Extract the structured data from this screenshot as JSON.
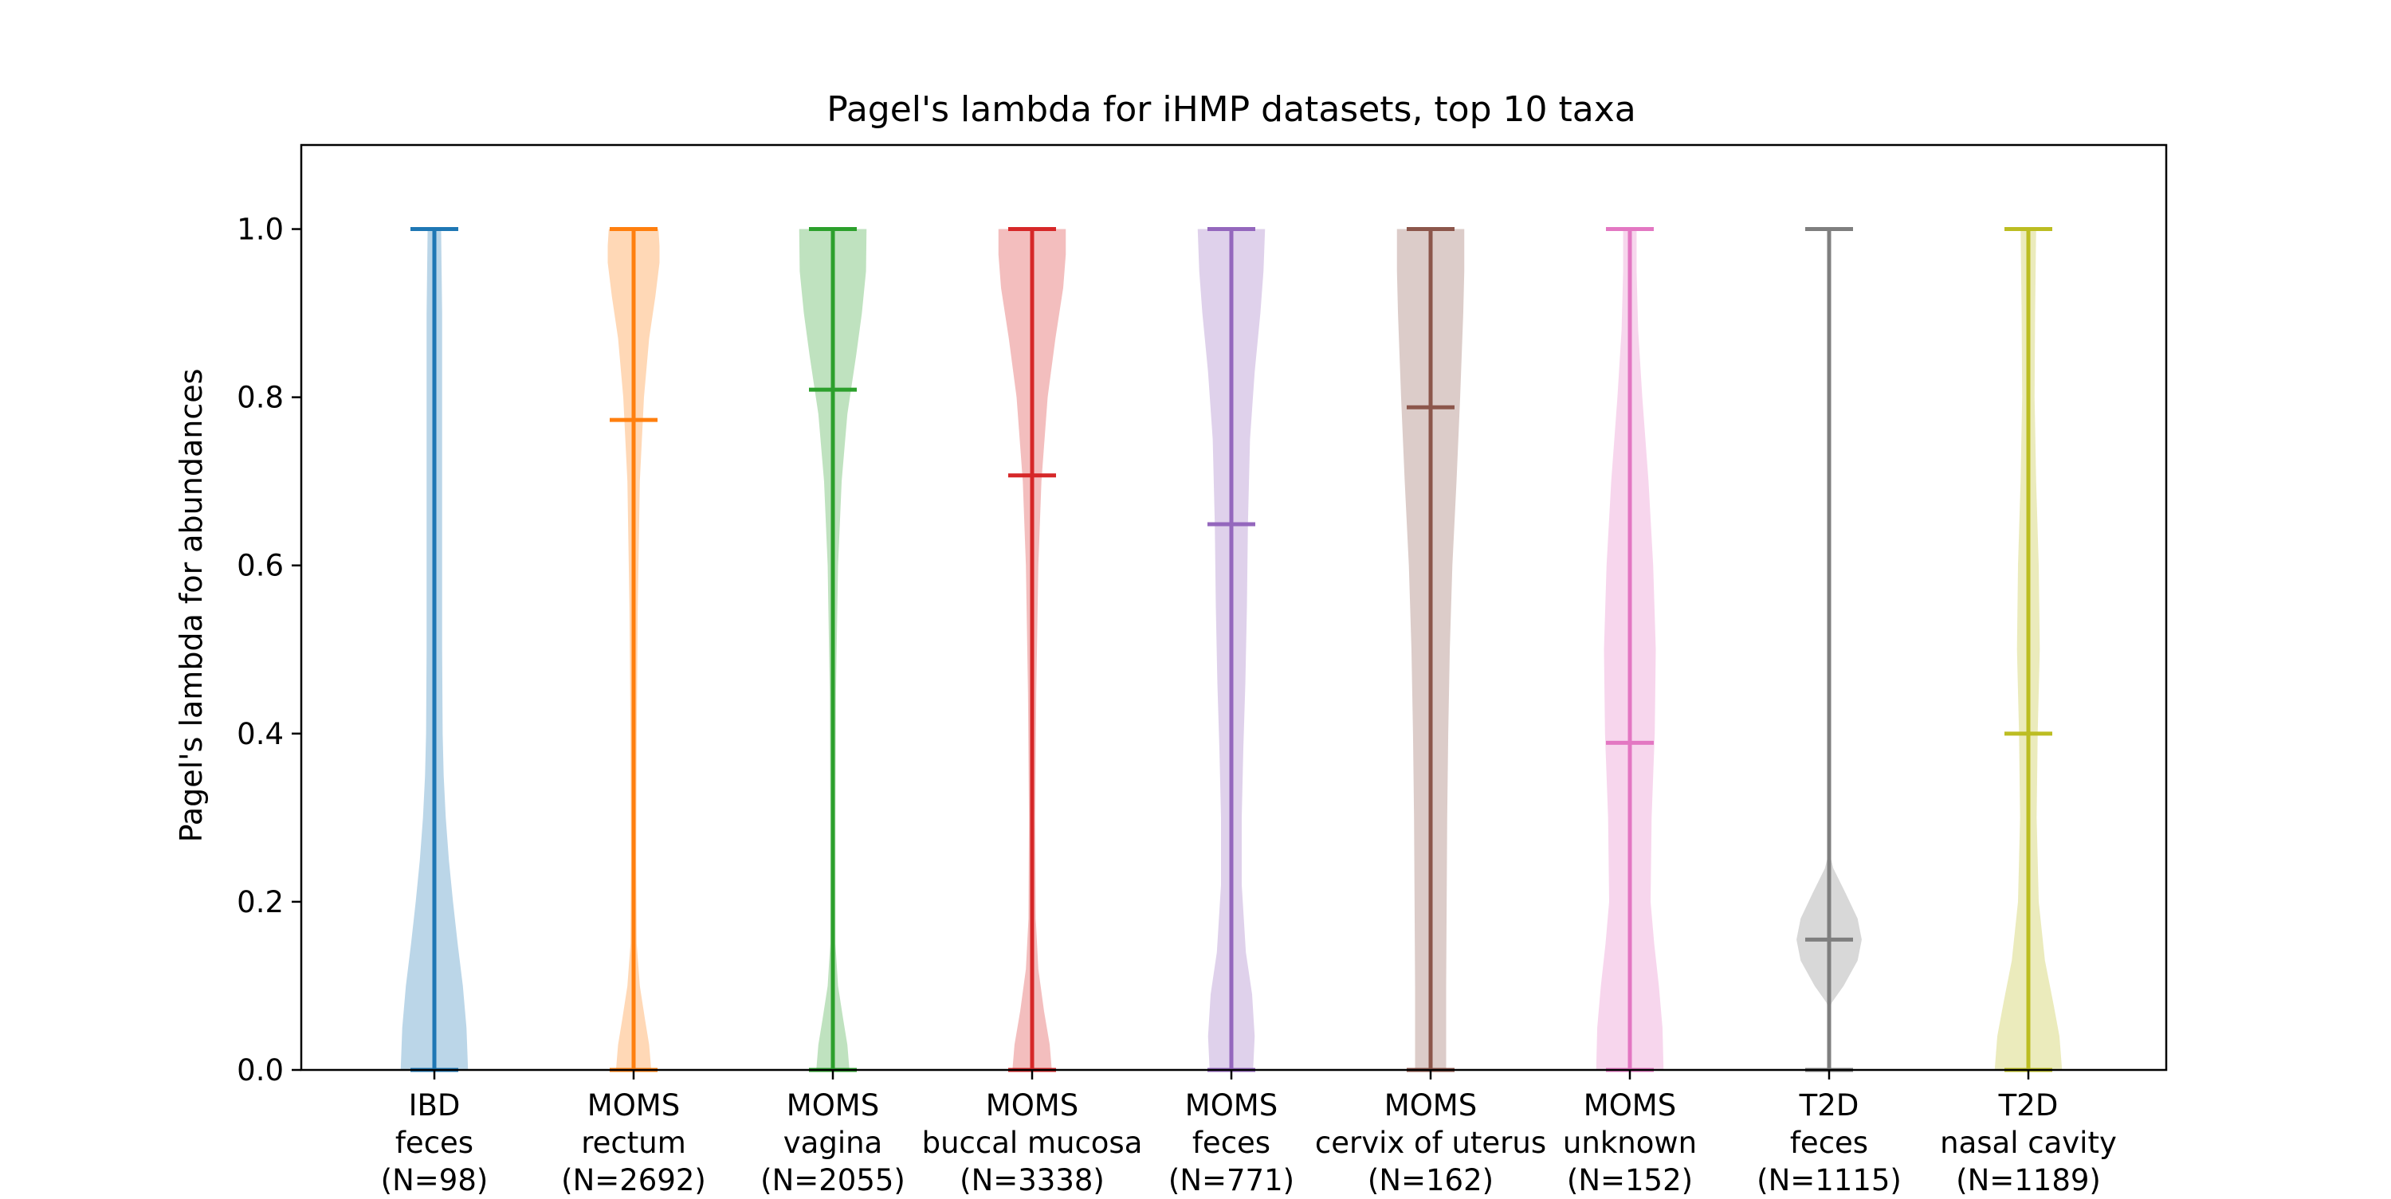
{
  "chart_data": {
    "type": "violin",
    "title": "Pagel's lambda for iHMP datasets, top 10 taxa",
    "xlabel": "",
    "ylabel": "Pagel's lambda for abundances",
    "ylim": [
      0,
      1.1
    ],
    "yticks": [
      "0.0",
      "0.2",
      "0.4",
      "0.6",
      "0.8",
      "1.0"
    ],
    "grid": false,
    "categories": [
      {
        "lines": [
          "IBD",
          "feces",
          "(N=98)"
        ],
        "color": "#1f77b4",
        "min": 0,
        "max": 1.0,
        "median": 1.0,
        "density": [
          [
            0,
            0.65
          ],
          [
            0.05,
            0.62
          ],
          [
            0.1,
            0.55
          ],
          [
            0.15,
            0.45
          ],
          [
            0.2,
            0.36
          ],
          [
            0.25,
            0.28
          ],
          [
            0.3,
            0.22
          ],
          [
            0.35,
            0.18
          ],
          [
            0.4,
            0.16
          ],
          [
            0.5,
            0.15
          ],
          [
            0.6,
            0.15
          ],
          [
            0.7,
            0.15
          ],
          [
            0.8,
            0.15
          ],
          [
            0.9,
            0.15
          ],
          [
            0.95,
            0.14
          ],
          [
            1.0,
            0.13
          ]
        ]
      },
      {
        "lines": [
          "MOMS",
          "rectum",
          "(N=2692)"
        ],
        "color": "#ff7f0e",
        "min": 0,
        "max": 1.0,
        "median": 0.773,
        "density": [
          [
            0,
            0.34
          ],
          [
            0.03,
            0.3
          ],
          [
            0.06,
            0.22
          ],
          [
            0.1,
            0.12
          ],
          [
            0.15,
            0.06
          ],
          [
            0.25,
            0.05
          ],
          [
            0.4,
            0.06
          ],
          [
            0.55,
            0.08
          ],
          [
            0.7,
            0.12
          ],
          [
            0.8,
            0.2
          ],
          [
            0.87,
            0.3
          ],
          [
            0.92,
            0.42
          ],
          [
            0.96,
            0.5
          ],
          [
            0.98,
            0.5
          ],
          [
            1.0,
            0.48
          ]
        ]
      },
      {
        "lines": [
          "MOMS",
          "vagina",
          "(N=2055)"
        ],
        "color": "#2ca02c",
        "min": 0,
        "max": 1.0,
        "median": 0.809,
        "density": [
          [
            0,
            0.32
          ],
          [
            0.03,
            0.28
          ],
          [
            0.06,
            0.2
          ],
          [
            0.1,
            0.1
          ],
          [
            0.15,
            0.05
          ],
          [
            0.3,
            0.05
          ],
          [
            0.45,
            0.06
          ],
          [
            0.6,
            0.1
          ],
          [
            0.7,
            0.17
          ],
          [
            0.78,
            0.28
          ],
          [
            0.85,
            0.45
          ],
          [
            0.9,
            0.56
          ],
          [
            0.95,
            0.64
          ],
          [
            1.0,
            0.65
          ]
        ]
      },
      {
        "lines": [
          "MOMS",
          "buccal mucosa",
          "(N=3338)"
        ],
        "color": "#d62728",
        "min": 0,
        "max": 1.0,
        "median": 0.707,
        "density": [
          [
            0,
            0.38
          ],
          [
            0.03,
            0.34
          ],
          [
            0.07,
            0.23
          ],
          [
            0.12,
            0.12
          ],
          [
            0.18,
            0.07
          ],
          [
            0.3,
            0.06
          ],
          [
            0.45,
            0.08
          ],
          [
            0.6,
            0.12
          ],
          [
            0.7,
            0.18
          ],
          [
            0.8,
            0.3
          ],
          [
            0.87,
            0.45
          ],
          [
            0.93,
            0.6
          ],
          [
            0.97,
            0.65
          ],
          [
            1.0,
            0.65
          ]
        ]
      },
      {
        "lines": [
          "MOMS",
          "feces",
          "(N=771)"
        ],
        "color": "#9467bd",
        "min": 0,
        "max": 1.0,
        "median": 0.649,
        "density": [
          [
            0,
            0.42
          ],
          [
            0.04,
            0.45
          ],
          [
            0.09,
            0.4
          ],
          [
            0.14,
            0.28
          ],
          [
            0.22,
            0.2
          ],
          [
            0.3,
            0.2
          ],
          [
            0.38,
            0.23
          ],
          [
            0.46,
            0.27
          ],
          [
            0.55,
            0.3
          ],
          [
            0.65,
            0.32
          ],
          [
            0.75,
            0.36
          ],
          [
            0.83,
            0.45
          ],
          [
            0.9,
            0.56
          ],
          [
            0.95,
            0.62
          ],
          [
            1.0,
            0.65
          ]
        ]
      },
      {
        "lines": [
          "MOMS",
          "cervix of uterus",
          "(N=162)"
        ],
        "color": "#8c564b",
        "min": 0,
        "max": 1.0,
        "median": 0.788,
        "density": [
          [
            0,
            0.3
          ],
          [
            0.1,
            0.3
          ],
          [
            0.2,
            0.31
          ],
          [
            0.3,
            0.32
          ],
          [
            0.4,
            0.34
          ],
          [
            0.5,
            0.37
          ],
          [
            0.6,
            0.42
          ],
          [
            0.7,
            0.5
          ],
          [
            0.8,
            0.57
          ],
          [
            0.9,
            0.63
          ],
          [
            0.95,
            0.65
          ],
          [
            1.0,
            0.65
          ]
        ]
      },
      {
        "lines": [
          "MOMS",
          "unknown",
          "(N=152)"
        ],
        "color": "#e377c2",
        "min": 0,
        "max": 1.0,
        "median": 0.389,
        "density": [
          [
            0,
            0.65
          ],
          [
            0.05,
            0.63
          ],
          [
            0.1,
            0.56
          ],
          [
            0.15,
            0.47
          ],
          [
            0.2,
            0.4
          ],
          [
            0.3,
            0.42
          ],
          [
            0.4,
            0.48
          ],
          [
            0.5,
            0.5
          ],
          [
            0.6,
            0.45
          ],
          [
            0.7,
            0.36
          ],
          [
            0.8,
            0.24
          ],
          [
            0.88,
            0.16
          ],
          [
            0.95,
            0.13
          ],
          [
            1.0,
            0.13
          ]
        ]
      },
      {
        "lines": [
          "T2D",
          "feces",
          "(N=1115)"
        ],
        "color": "#7f7f7f",
        "min": 0,
        "max": 1.0,
        "median": 0.155,
        "density": [
          [
            0.07,
            0
          ],
          [
            0.08,
            0.05
          ],
          [
            0.1,
            0.28
          ],
          [
            0.13,
            0.55
          ],
          [
            0.155,
            0.63
          ],
          [
            0.18,
            0.55
          ],
          [
            0.21,
            0.32
          ],
          [
            0.24,
            0.08
          ],
          [
            0.26,
            0
          ]
        ]
      },
      {
        "lines": [
          "T2D",
          "nasal cavity",
          "(N=1189)"
        ],
        "color": "#bcbd22",
        "min": 0,
        "max": 1.0,
        "median": 0.4,
        "density": [
          [
            0,
            0.65
          ],
          [
            0.04,
            0.6
          ],
          [
            0.08,
            0.48
          ],
          [
            0.13,
            0.32
          ],
          [
            0.2,
            0.2
          ],
          [
            0.3,
            0.16
          ],
          [
            0.4,
            0.18
          ],
          [
            0.5,
            0.22
          ],
          [
            0.6,
            0.2
          ],
          [
            0.7,
            0.15
          ],
          [
            0.8,
            0.12
          ],
          [
            0.9,
            0.13
          ],
          [
            1.0,
            0.15
          ]
        ]
      }
    ]
  }
}
